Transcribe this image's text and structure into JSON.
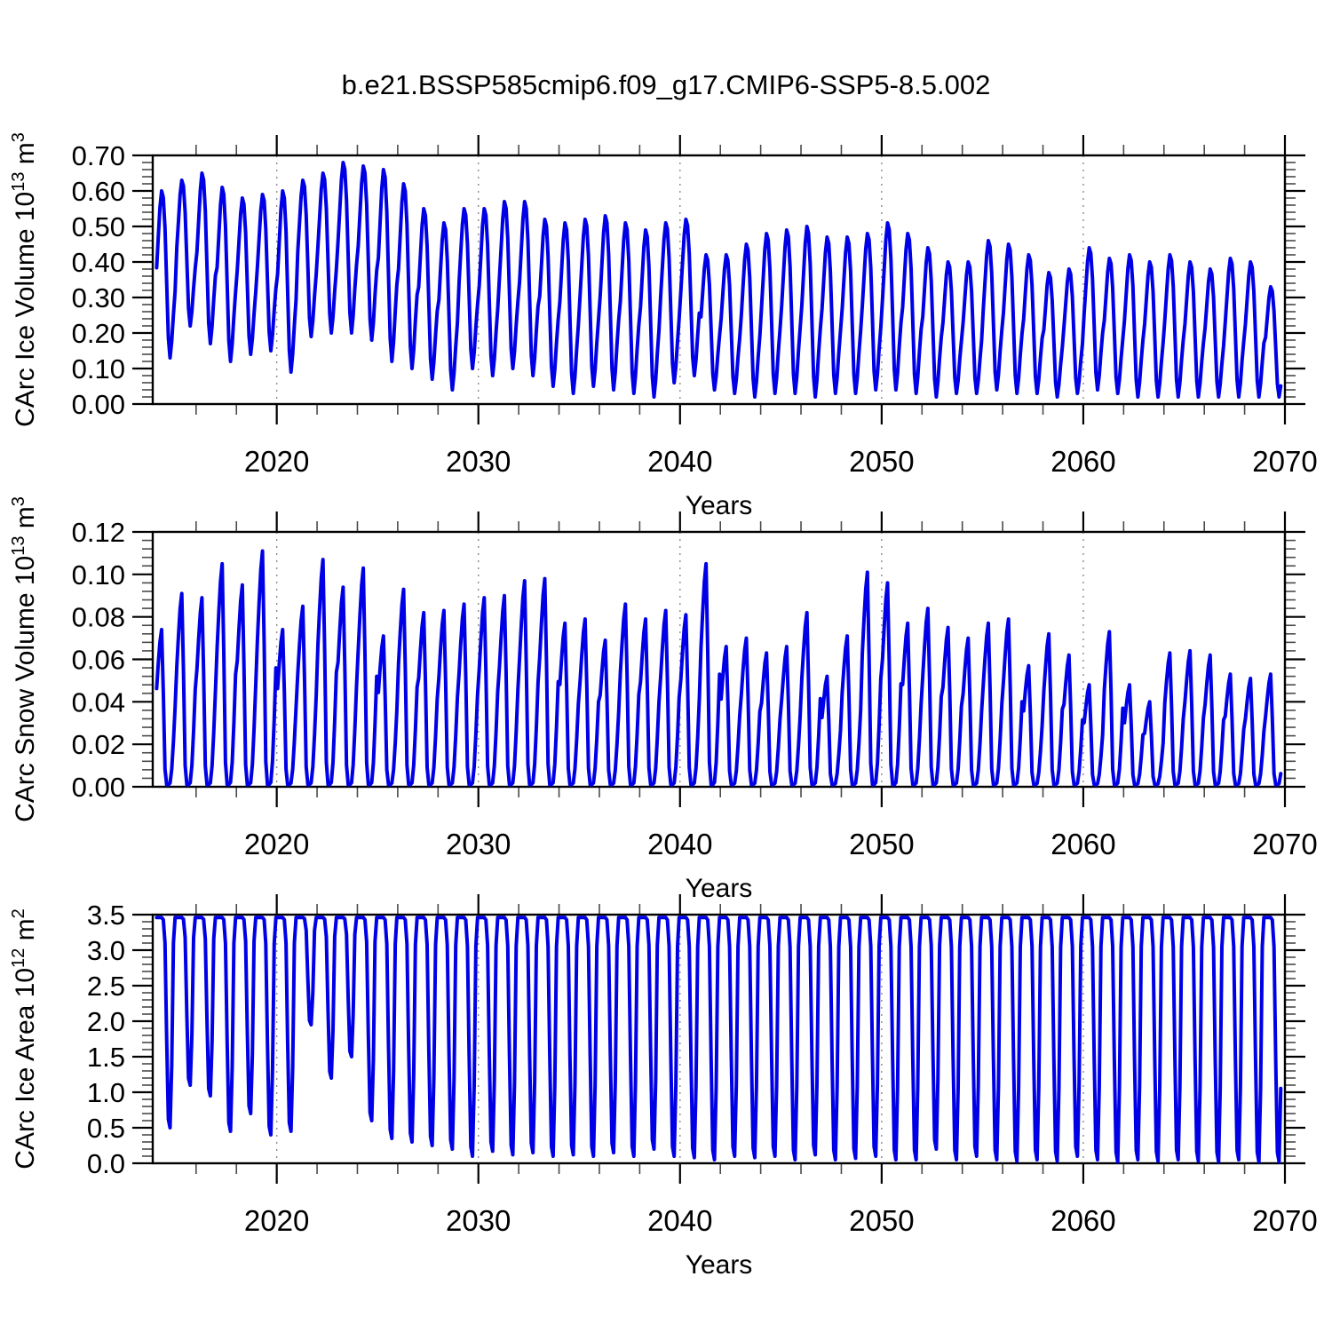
{
  "title": "b.e21.BSSP585cmip6.f09_g17.CMIP6-SSP5-8.5.002",
  "line_color": "#0000e6",
  "grid_color": "#8a8a8a",
  "x_axis": {
    "label": "Years",
    "xlim": [
      2013.85,
      2070
    ],
    "tick_labels": [
      "2020",
      "2030",
      "2040",
      "2050",
      "2060",
      "2070"
    ],
    "minor_start": 2016,
    "minor_step": 2,
    "minor_end": 2068,
    "grid_years": [
      2020,
      2030,
      2040,
      2050,
      2060
    ]
  },
  "series_start_year": 2014,
  "months_in_last_year": 10,
  "chart_data": [
    {
      "type": "line",
      "name": "CArc Ice Volume",
      "ylabel_parts": [
        {
          "t": "CArc Ice Volume 10"
        },
        {
          "t": "13",
          "sup": true
        },
        {
          "t": " m"
        },
        {
          "t": "3",
          "sup": true
        }
      ],
      "ylim": [
        0.0,
        0.7
      ],
      "ytick_labels": [
        "0.00",
        "0.10",
        "0.20",
        "0.30",
        "0.40",
        "0.50",
        "0.60",
        "0.70"
      ],
      "yminor_step": 0.02,
      "xlabel": "Years",
      "seasonal_profile": [
        0.54,
        0.72,
        0.9,
        1.0,
        0.96,
        0.78,
        0.45,
        0.12,
        0.0,
        0.1,
        0.26,
        0.4
      ],
      "annual_max": [
        0.6,
        0.63,
        0.65,
        0.61,
        0.58,
        0.59,
        0.6,
        0.63,
        0.65,
        0.68,
        0.67,
        0.66,
        0.62,
        0.55,
        0.51,
        0.55,
        0.55,
        0.57,
        0.57,
        0.52,
        0.51,
        0.52,
        0.53,
        0.51,
        0.49,
        0.51,
        0.52,
        0.42,
        0.42,
        0.45,
        0.48,
        0.49,
        0.5,
        0.47,
        0.47,
        0.48,
        0.51,
        0.48,
        0.44,
        0.4,
        0.4,
        0.46,
        0.45,
        0.42,
        0.37,
        0.38,
        0.44,
        0.41,
        0.42,
        0.4,
        0.42,
        0.4,
        0.38,
        0.41,
        0.4,
        0.33
      ],
      "annual_min": [
        0.13,
        0.22,
        0.17,
        0.12,
        0.14,
        0.15,
        0.09,
        0.19,
        0.2,
        0.2,
        0.18,
        0.12,
        0.1,
        0.07,
        0.04,
        0.1,
        0.08,
        0.1,
        0.08,
        0.05,
        0.03,
        0.05,
        0.04,
        0.03,
        0.02,
        0.06,
        0.08,
        0.04,
        0.03,
        0.02,
        0.03,
        0.03,
        0.02,
        0.03,
        0.03,
        0.04,
        0.04,
        0.03,
        0.02,
        0.03,
        0.03,
        0.04,
        0.03,
        0.03,
        0.02,
        0.03,
        0.04,
        0.03,
        0.02,
        0.02,
        0.02,
        0.02,
        0.02,
        0.02,
        0.02,
        0.02
      ]
    },
    {
      "type": "line",
      "name": "CArc Snow Volume",
      "ylabel_parts": [
        {
          "t": "CArc Snow Volume 10"
        },
        {
          "t": "13",
          "sup": true
        },
        {
          "t": " m"
        },
        {
          "t": "3",
          "sup": true
        }
      ],
      "ylim": [
        0.0,
        0.12
      ],
      "ytick_labels": [
        "0.00",
        "0.02",
        "0.04",
        "0.06",
        "0.08",
        "0.10",
        "0.12"
      ],
      "yminor_step": 0.004,
      "xlabel": "Years",
      "seasonal_profile": [
        0.62,
        0.78,
        0.92,
        1.0,
        0.6,
        0.1,
        0.0,
        0.0,
        0.01,
        0.1,
        0.28,
        0.5
      ],
      "annual_max": [
        0.074,
        0.091,
        0.089,
        0.105,
        0.095,
        0.111,
        0.074,
        0.085,
        0.107,
        0.094,
        0.103,
        0.071,
        0.093,
        0.082,
        0.083,
        0.086,
        0.089,
        0.09,
        0.097,
        0.098,
        0.077,
        0.079,
        0.069,
        0.086,
        0.079,
        0.083,
        0.081,
        0.105,
        0.066,
        0.07,
        0.063,
        0.066,
        0.082,
        0.052,
        0.071,
        0.101,
        0.096,
        0.077,
        0.084,
        0.075,
        0.07,
        0.077,
        0.079,
        0.057,
        0.072,
        0.062,
        0.048,
        0.073,
        0.048,
        0.04,
        0.063,
        0.064,
        0.062,
        0.053,
        0.051,
        0.053
      ],
      "annual_min": 0.001
    },
    {
      "type": "line",
      "name": "CArc Ice Area",
      "ylabel_parts": [
        {
          "t": "CArc Ice Area 10"
        },
        {
          "t": "12",
          "sup": true
        },
        {
          "t": " m"
        },
        {
          "t": "2",
          "sup": true
        }
      ],
      "ylim": [
        0.0,
        3.5
      ],
      "ytick_labels": [
        "0.0",
        "0.5",
        "1.0",
        "1.5",
        "2.0",
        "2.5",
        "3.0",
        "3.5"
      ],
      "yminor_step": 0.1,
      "xlabel": "Years",
      "seasonal_profile": [
        1.0,
        1.0,
        1.0,
        1.0,
        0.99,
        0.88,
        0.42,
        0.04,
        0.0,
        0.3,
        0.88,
        1.0
      ],
      "annual_max": 3.46,
      "annual_min": [
        0.5,
        1.1,
        0.95,
        0.45,
        0.7,
        0.4,
        0.45,
        1.95,
        1.2,
        1.5,
        0.6,
        0.35,
        0.3,
        0.25,
        0.2,
        0.1,
        0.17,
        0.12,
        0.15,
        0.1,
        0.12,
        0.1,
        0.15,
        0.1,
        0.2,
        0.1,
        0.08,
        0.05,
        0.1,
        0.08,
        0.1,
        0.05,
        0.12,
        0.05,
        0.07,
        0.1,
        0.05,
        0.05,
        0.2,
        0.05,
        0.1,
        0.05,
        0.03,
        0.05,
        0.03,
        0.1,
        0.05,
        0.02,
        0.05,
        0.03,
        0.05,
        0.03,
        0.02,
        0.05,
        0.02,
        0.02
      ]
    }
  ]
}
